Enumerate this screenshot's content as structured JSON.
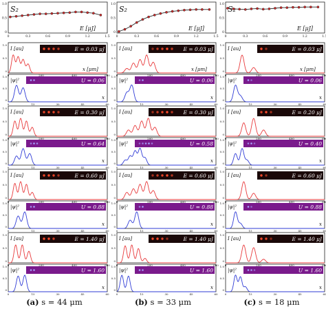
{
  "colors": {
    "intensity": "#e8383a",
    "wave": "#2f3bd6",
    "s2": "#2b2b2b",
    "s2_marker": "#cc2a2a",
    "dark_bg": "#1a0808",
    "purple_bg": "#7a1a8c",
    "spot_red": "#ff4a2a",
    "spot_blue": "#a7a4ff"
  },
  "columns": [
    {
      "caption_letter": "(a)",
      "caption_text": "s = 44 μm",
      "s2": {
        "label": "S₂",
        "xlabel": "E [μJ]",
        "x_ticks": [
          "0",
          "0.3",
          "0.6",
          "0.9",
          "1.2",
          "1.5"
        ],
        "y_ticks": [
          "1.0",
          "0.5",
          "0"
        ],
        "x": [
          0.03,
          0.12,
          0.21,
          0.3,
          0.39,
          0.48,
          0.57,
          0.66,
          0.75,
          0.84,
          0.93,
          1.02,
          1.11,
          1.2,
          1.29,
          1.4
        ],
        "y": [
          0.52,
          0.54,
          0.56,
          0.58,
          0.6,
          0.62,
          0.62,
          0.63,
          0.64,
          0.65,
          0.66,
          0.68,
          0.68,
          0.66,
          0.64,
          0.58
        ]
      },
      "rows": [
        {
          "int_label": "E = 0.03 μJ",
          "wave_label": "U = 0.06",
          "int_peaks": [
            [
              30,
              10,
              1
            ],
            [
              60,
              10,
              0.9
            ],
            [
              90,
              10,
              0.75
            ],
            [
              120,
              10,
              0.5
            ]
          ],
          "wave_peaks": [
            [
              5,
              1.2,
              1
            ],
            [
              9,
              1.2,
              0.85
            ]
          ]
        },
        {
          "int_label": "E = 0.30 μJ",
          "wave_label": "U = 0.64",
          "int_peaks": [
            [
              40,
              10,
              0.85
            ],
            [
              75,
              10,
              1
            ],
            [
              110,
              10,
              0.85
            ],
            [
              145,
              10,
              0.5
            ]
          ],
          "wave_peaks": [
            [
              5,
              1.2,
              0.55
            ],
            [
              9,
              1.2,
              1
            ],
            [
              13,
              1.2,
              0.7
            ]
          ]
        },
        {
          "int_label": "E = 0.60 μJ",
          "wave_label": "U = 0.88",
          "int_peaks": [
            [
              40,
              10,
              0.9
            ],
            [
              75,
              10,
              1
            ],
            [
              110,
              10,
              0.85
            ],
            [
              145,
              10,
              0.4
            ]
          ],
          "wave_peaks": [
            [
              6,
              1.2,
              0.75
            ],
            [
              10,
              1.2,
              1
            ]
          ]
        },
        {
          "int_label": "E = 1.40 μJ",
          "wave_label": "U = 1.60",
          "int_peaks": [
            [
              45,
              10,
              1
            ],
            [
              85,
              10,
              1
            ],
            [
              125,
              10,
              0.65
            ]
          ],
          "wave_peaks": [
            [
              6,
              1.1,
              0.95
            ],
            [
              10,
              1.1,
              1
            ]
          ]
        }
      ]
    },
    {
      "caption_letter": "(b)",
      "caption_text": "s = 33 μm",
      "s2": {
        "label": "S₂",
        "xlabel": "E [μJ]",
        "x_ticks": [
          "0",
          "0.3",
          "0.6",
          "0.9",
          "1.2",
          "1.5"
        ],
        "y_ticks": [
          "1.0",
          "0.5",
          "0"
        ],
        "x": [
          0.03,
          0.12,
          0.21,
          0.3,
          0.39,
          0.48,
          0.57,
          0.66,
          0.75,
          0.84,
          0.93,
          1.02,
          1.11,
          1.2,
          1.29,
          1.4
        ],
        "y": [
          0.05,
          0.12,
          0.22,
          0.34,
          0.44,
          0.52,
          0.58,
          0.63,
          0.67,
          0.7,
          0.72,
          0.74,
          0.75,
          0.76,
          0.76,
          0.76
        ]
      },
      "rows": [
        {
          "int_label": "E = 0.03 μJ",
          "wave_label": "U = 0.06",
          "int_peaks": [
            [
              60,
              12,
              0.25
            ],
            [
              100,
              12,
              0.55
            ],
            [
              140,
              12,
              0.75
            ],
            [
              180,
              12,
              1
            ],
            [
              220,
              12,
              0.6
            ]
          ],
          "wave_peaks": [
            [
              6,
              1.2,
              0.55
            ],
            [
              9,
              1.2,
              1
            ]
          ]
        },
        {
          "int_label": "E = 0.30 μJ",
          "wave_label": "U = 0.58",
          "int_peaks": [
            [
              70,
              12,
              0.35
            ],
            [
              110,
              12,
              0.6
            ],
            [
              150,
              12,
              0.85
            ],
            [
              190,
              12,
              1
            ],
            [
              230,
              12,
              0.5
            ]
          ],
          "wave_peaks": [
            [
              5,
              1.1,
              0.3
            ],
            [
              8,
              1.1,
              0.55
            ],
            [
              11,
              1.1,
              0.85
            ],
            [
              14,
              1.1,
              1
            ],
            [
              17,
              1.1,
              0.45
            ]
          ]
        },
        {
          "int_label": "E = 0.60 μJ",
          "wave_label": "U = 0.88",
          "int_peaks": [
            [
              60,
              12,
              0.4
            ],
            [
              100,
              12,
              0.6
            ],
            [
              140,
              12,
              0.85
            ],
            [
              180,
              12,
              1
            ],
            [
              220,
              12,
              0.5
            ]
          ],
          "wave_peaks": [
            [
              8,
              1.2,
              0.5
            ],
            [
              12,
              1.2,
              1
            ]
          ]
        },
        {
          "int_label": "E = 1.40 μJ",
          "wave_label": "U = 1.60",
          "int_peaks": [
            [
              50,
              10,
              0.95
            ],
            [
              90,
              10,
              1
            ],
            [
              130,
              10,
              0.8
            ],
            [
              170,
              10,
              0.25
            ]
          ],
          "wave_peaks": [
            [
              3,
              1.0,
              1
            ],
            [
              7,
              1.0,
              0.95
            ]
          ]
        }
      ]
    },
    {
      "caption_letter": "(c)",
      "caption_text": "s = 18 μm",
      "s2": {
        "label": "S₂",
        "xlabel": "E [μJ]",
        "x_ticks": [
          "0",
          "0.3",
          "0.6",
          "0.9",
          "1.2",
          "1.5"
        ],
        "y_ticks": [
          "1.0",
          "0.5",
          "0"
        ],
        "x": [
          0.03,
          0.12,
          0.21,
          0.3,
          0.39,
          0.48,
          0.57,
          0.66,
          0.75,
          0.84,
          0.93,
          1.02,
          1.11,
          1.2,
          1.29,
          1.4
        ],
        "y": [
          0.8,
          0.78,
          0.77,
          0.76,
          0.78,
          0.79,
          0.77,
          0.78,
          0.8,
          0.82,
          0.82,
          0.83,
          0.83,
          0.84,
          0.84,
          0.84
        ]
      },
      "rows": [
        {
          "int_label": "E = 0.03 μJ",
          "wave_label": "U = 0.06",
          "int_peaks": [
            [
              100,
              12,
              1
            ],
            [
              170,
              12,
              0.3
            ]
          ],
          "wave_peaks": [
            [
              6,
              1.2,
              1
            ],
            [
              9,
              1.2,
              0.35
            ]
          ]
        },
        {
          "int_label": "E = 0.20 μJ",
          "wave_label": "U = 0.40",
          "int_peaks": [
            [
              110,
              12,
              0.75
            ],
            [
              170,
              12,
              1
            ],
            [
              230,
              12,
              0.35
            ]
          ],
          "wave_peaks": [
            [
              6,
              1.1,
              0.7
            ],
            [
              10,
              1.1,
              1
            ],
            [
              13,
              1.1,
              0.3
            ]
          ]
        },
        {
          "int_label": "E = 0.60 μJ",
          "wave_label": "U = 0.88",
          "int_peaks": [
            [
              110,
              12,
              1
            ],
            [
              170,
              12,
              0.35
            ]
          ],
          "wave_peaks": [
            [
              6,
              1.1,
              1
            ],
            [
              9,
              1.1,
              0.3
            ]
          ]
        },
        {
          "int_label": "E = 1.40 μJ",
          "wave_label": "U = 1.60",
          "int_peaks": [
            [
              110,
              12,
              1
            ],
            [
              170,
              12,
              0.85
            ],
            [
              230,
              12,
              0.2
            ]
          ],
          "wave_peaks": [
            [
              6,
              1.0,
              1
            ],
            [
              9,
              1.0,
              0.9
            ],
            [
              12,
              1.0,
              0.3
            ]
          ]
        }
      ]
    }
  ],
  "labels": {
    "int_axis": "I [au]",
    "int_xlabel": "x [μm]",
    "int_x_ticks": [
      "0",
      "200",
      "400",
      "600"
    ],
    "int_y_ticks": [
      "1.0",
      "0.5",
      "0"
    ],
    "wave_axis": "|ψ|²",
    "wave_xlabel": "x",
    "wave_x_ticks": [
      "0",
      "15",
      "30",
      "45",
      "60"
    ],
    "wave_y_ticks": [
      "1.0",
      "0.5",
      "0"
    ]
  }
}
